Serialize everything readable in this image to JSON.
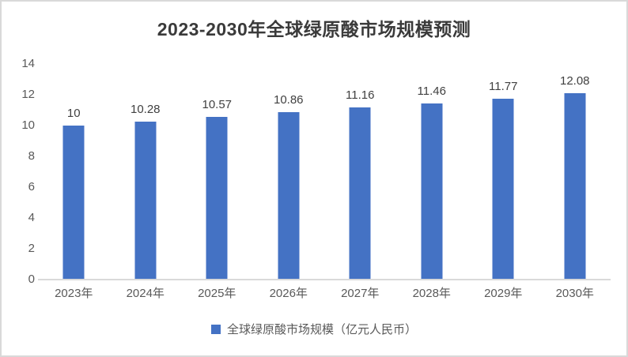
{
  "title": "2023-2030年全球绿原酸市场规模预测",
  "chart_data": {
    "type": "bar",
    "title": "2023-2030年全球绿原酸市场规模预测",
    "categories": [
      "2023年",
      "2024年",
      "2025年",
      "2026年",
      "2027年",
      "2028年",
      "2029年",
      "2030年"
    ],
    "series": [
      {
        "name": "全球绿原酸市场规模（亿元人民币）",
        "values": [
          10,
          10.28,
          10.57,
          10.86,
          11.16,
          11.46,
          11.77,
          12.08
        ]
      }
    ],
    "data_labels": [
      "10",
      "10.28",
      "10.57",
      "10.86",
      "11.16",
      "11.46",
      "11.77",
      "12.08"
    ],
    "xlabel": "",
    "ylabel": "",
    "ylim": [
      0,
      14
    ],
    "y_ticks": [
      0,
      2,
      4,
      6,
      8,
      10,
      12,
      14
    ],
    "grid": false,
    "legend_position": "bottom"
  },
  "legend": {
    "label": "全球绿原酸市场规模（亿元人民币）"
  },
  "colors": {
    "bar": "#4472C4",
    "legend_marker": "#4472C4",
    "title_text": "#3a3a3a",
    "axis_text": "#595959",
    "data_label_text": "#404040",
    "axis_line": "#d9d9d9",
    "frame_border": "#d9d9d9",
    "background": "#ffffff"
  }
}
